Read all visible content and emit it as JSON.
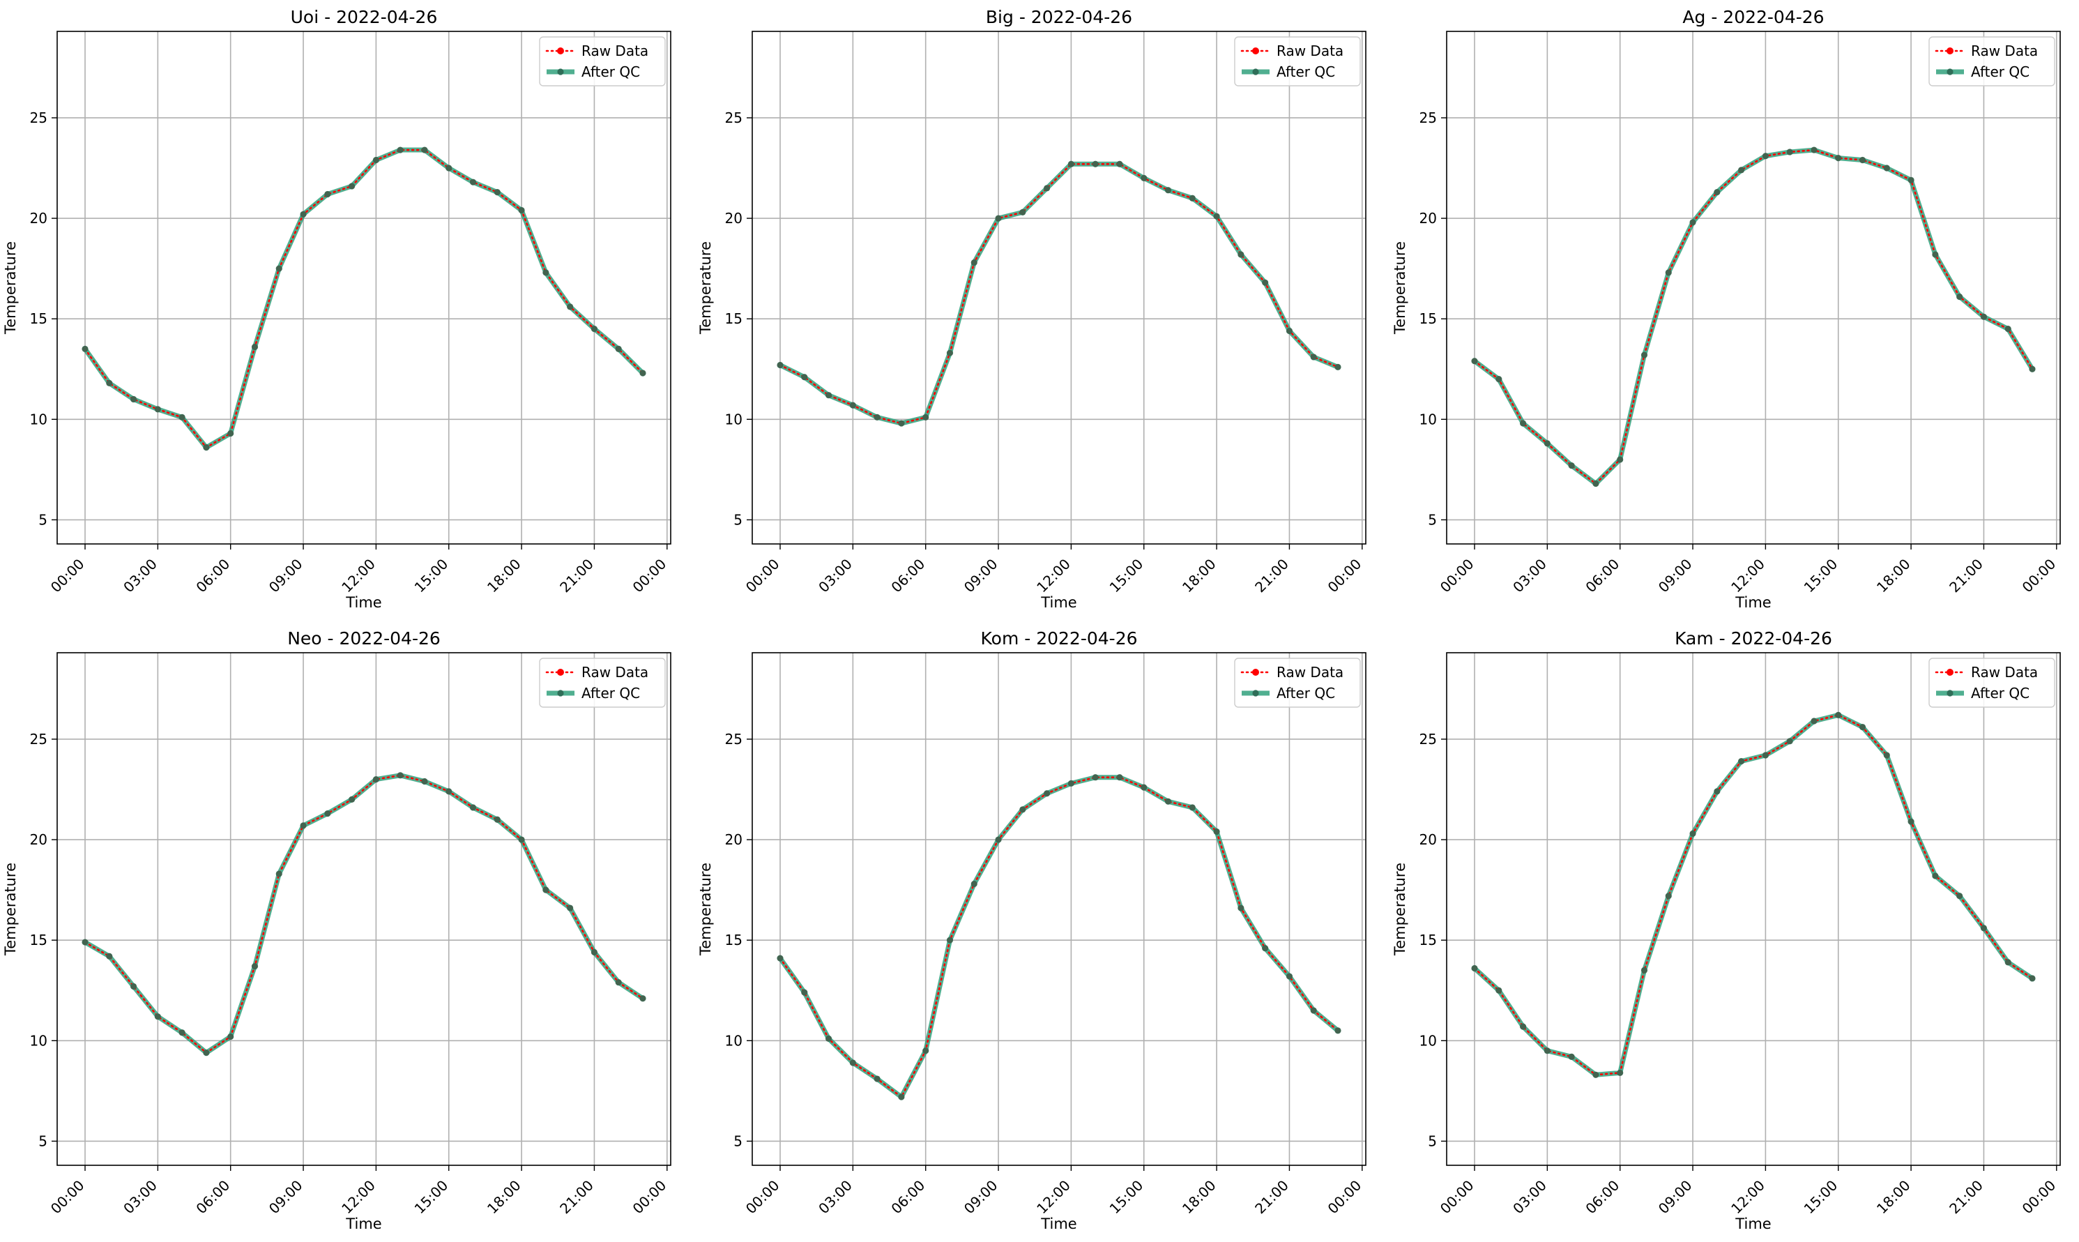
{
  "chart_data": [
    {
      "type": "line",
      "title": "Uoi - 2022-04-26",
      "xlabel": "Time",
      "ylabel": "Temperature",
      "x_ticks": [
        "00:00",
        "03:00",
        "06:00",
        "09:00",
        "12:00",
        "15:00",
        "18:00",
        "21:00",
        "00:00"
      ],
      "y_ticks": [
        5,
        10,
        15,
        20,
        25
      ],
      "ylim": [
        3.8,
        29.3
      ],
      "grid": true,
      "legend_position": "top-right",
      "x_hours": [
        0,
        1,
        2,
        3,
        4,
        5,
        6,
        7,
        8,
        9,
        10,
        11,
        12,
        13,
        14,
        15,
        16,
        17,
        18,
        19,
        20,
        21,
        22,
        23
      ],
      "series": [
        {
          "name": "Raw Data",
          "color": "#ff0000",
          "style": "dotted",
          "values": [
            13.5,
            11.8,
            11.0,
            10.5,
            10.1,
            8.6,
            9.3,
            13.6,
            17.5,
            20.2,
            21.2,
            21.6,
            22.9,
            23.4,
            23.4,
            22.5,
            21.8,
            21.3,
            20.4,
            17.3,
            15.6,
            14.5,
            13.5,
            12.3
          ]
        },
        {
          "name": "After QC",
          "color": "#2a9d78",
          "style": "solid",
          "values": [
            13.5,
            11.8,
            11.0,
            10.5,
            10.1,
            8.6,
            9.3,
            13.6,
            17.5,
            20.2,
            21.2,
            21.6,
            22.9,
            23.4,
            23.4,
            22.5,
            21.8,
            21.3,
            20.4,
            17.3,
            15.6,
            14.5,
            13.5,
            12.3
          ]
        }
      ]
    },
    {
      "type": "line",
      "title": "Big - 2022-04-26",
      "xlabel": "Time",
      "ylabel": "Temperature",
      "x_ticks": [
        "00:00",
        "03:00",
        "06:00",
        "09:00",
        "12:00",
        "15:00",
        "18:00",
        "21:00",
        "00:00"
      ],
      "y_ticks": [
        5,
        10,
        15,
        20,
        25
      ],
      "ylim": [
        3.8,
        29.3
      ],
      "grid": true,
      "legend_position": "top-right",
      "x_hours": [
        0,
        1,
        2,
        3,
        4,
        5,
        6,
        7,
        8,
        9,
        10,
        11,
        12,
        13,
        14,
        15,
        16,
        17,
        18,
        19,
        20,
        21,
        22,
        23
      ],
      "series": [
        {
          "name": "Raw Data",
          "color": "#ff0000",
          "style": "dotted",
          "values": [
            12.7,
            12.1,
            11.2,
            10.7,
            10.1,
            9.8,
            10.1,
            13.3,
            17.8,
            20.0,
            20.3,
            21.5,
            22.7,
            22.7,
            22.7,
            22.0,
            21.4,
            21.0,
            20.1,
            18.2,
            16.8,
            14.4,
            13.1,
            12.6
          ]
        },
        {
          "name": "After QC",
          "color": "#2a9d78",
          "style": "solid",
          "values": [
            12.7,
            12.1,
            11.2,
            10.7,
            10.1,
            9.8,
            10.1,
            13.3,
            17.8,
            20.0,
            20.3,
            21.5,
            22.7,
            22.7,
            22.7,
            22.0,
            21.4,
            21.0,
            20.1,
            18.2,
            16.8,
            14.4,
            13.1,
            12.6
          ]
        }
      ]
    },
    {
      "type": "line",
      "title": "Ag - 2022-04-26",
      "xlabel": "Time",
      "ylabel": "Temperature",
      "x_ticks": [
        "00:00",
        "03:00",
        "06:00",
        "09:00",
        "12:00",
        "15:00",
        "18:00",
        "21:00",
        "00:00"
      ],
      "y_ticks": [
        5,
        10,
        15,
        20,
        25
      ],
      "ylim": [
        3.8,
        29.3
      ],
      "grid": true,
      "legend_position": "top-right",
      "x_hours": [
        0,
        1,
        2,
        3,
        4,
        5,
        6,
        7,
        8,
        9,
        10,
        11,
        12,
        13,
        14,
        15,
        16,
        17,
        18,
        19,
        20,
        21,
        22,
        23
      ],
      "series": [
        {
          "name": "Raw Data",
          "color": "#ff0000",
          "style": "dotted",
          "values": [
            12.9,
            12.0,
            9.8,
            8.8,
            7.7,
            6.8,
            8.0,
            13.2,
            17.3,
            19.8,
            21.3,
            22.4,
            23.1,
            23.3,
            23.4,
            23.0,
            22.9,
            22.5,
            21.9,
            18.2,
            16.1,
            15.1,
            14.5,
            12.5
          ]
        },
        {
          "name": "After QC",
          "color": "#2a9d78",
          "style": "solid",
          "values": [
            12.9,
            12.0,
            9.8,
            8.8,
            7.7,
            6.8,
            8.0,
            13.2,
            17.3,
            19.8,
            21.3,
            22.4,
            23.1,
            23.3,
            23.4,
            23.0,
            22.9,
            22.5,
            21.9,
            18.2,
            16.1,
            15.1,
            14.5,
            12.5
          ]
        }
      ]
    },
    {
      "type": "line",
      "title": "Neo - 2022-04-26",
      "xlabel": "Time",
      "ylabel": "Temperature",
      "x_ticks": [
        "00:00",
        "03:00",
        "06:00",
        "09:00",
        "12:00",
        "15:00",
        "18:00",
        "21:00",
        "00:00"
      ],
      "y_ticks": [
        5,
        10,
        15,
        20,
        25
      ],
      "ylim": [
        3.8,
        29.3
      ],
      "grid": true,
      "legend_position": "top-right",
      "x_hours": [
        0,
        1,
        2,
        3,
        4,
        5,
        6,
        7,
        8,
        9,
        10,
        11,
        12,
        13,
        14,
        15,
        16,
        17,
        18,
        19,
        20,
        21,
        22,
        23
      ],
      "series": [
        {
          "name": "Raw Data",
          "color": "#ff0000",
          "style": "dotted",
          "values": [
            14.9,
            14.2,
            12.7,
            11.2,
            10.4,
            9.4,
            10.2,
            13.7,
            18.3,
            20.7,
            21.3,
            22.0,
            23.0,
            23.2,
            22.9,
            22.4,
            21.6,
            21.0,
            20.0,
            17.5,
            16.6,
            14.4,
            12.9,
            12.1
          ]
        },
        {
          "name": "After QC",
          "color": "#2a9d78",
          "style": "solid",
          "values": [
            14.9,
            14.2,
            12.7,
            11.2,
            10.4,
            9.4,
            10.2,
            13.7,
            18.3,
            20.7,
            21.3,
            22.0,
            23.0,
            23.2,
            22.9,
            22.4,
            21.6,
            21.0,
            20.0,
            17.5,
            16.6,
            14.4,
            12.9,
            12.1
          ]
        }
      ]
    },
    {
      "type": "line",
      "title": "Kom - 2022-04-26",
      "xlabel": "Time",
      "ylabel": "Temperature",
      "x_ticks": [
        "00:00",
        "03:00",
        "06:00",
        "09:00",
        "12:00",
        "15:00",
        "18:00",
        "21:00",
        "00:00"
      ],
      "y_ticks": [
        5,
        10,
        15,
        20,
        25
      ],
      "ylim": [
        3.8,
        29.3
      ],
      "grid": true,
      "legend_position": "top-right",
      "x_hours": [
        0,
        1,
        2,
        3,
        4,
        5,
        6,
        7,
        8,
        9,
        10,
        11,
        12,
        13,
        14,
        15,
        16,
        17,
        18,
        19,
        20,
        21,
        22,
        23
      ],
      "series": [
        {
          "name": "Raw Data",
          "color": "#ff0000",
          "style": "dotted",
          "values": [
            14.1,
            12.4,
            10.1,
            8.9,
            8.1,
            7.2,
            9.5,
            15.0,
            17.8,
            20.0,
            21.5,
            22.3,
            22.8,
            23.1,
            23.1,
            22.6,
            21.9,
            21.6,
            20.4,
            16.6,
            14.6,
            13.2,
            11.5,
            10.5
          ]
        },
        {
          "name": "After QC",
          "color": "#2a9d78",
          "style": "solid",
          "values": [
            14.1,
            12.4,
            10.1,
            8.9,
            8.1,
            7.2,
            9.5,
            15.0,
            17.8,
            20.0,
            21.5,
            22.3,
            22.8,
            23.1,
            23.1,
            22.6,
            21.9,
            21.6,
            20.4,
            16.6,
            14.6,
            13.2,
            11.5,
            10.5
          ]
        }
      ]
    },
    {
      "type": "line",
      "title": "Kam - 2022-04-26",
      "xlabel": "Time",
      "ylabel": "Temperature",
      "x_ticks": [
        "00:00",
        "03:00",
        "06:00",
        "09:00",
        "12:00",
        "15:00",
        "18:00",
        "21:00",
        "00:00"
      ],
      "y_ticks": [
        5,
        10,
        15,
        20,
        25
      ],
      "ylim": [
        3.8,
        29.3
      ],
      "grid": true,
      "legend_position": "top-right",
      "x_hours": [
        0,
        1,
        2,
        3,
        4,
        5,
        6,
        7,
        8,
        9,
        10,
        11,
        12,
        13,
        14,
        15,
        16,
        17,
        18,
        19,
        20,
        21,
        22,
        23
      ],
      "series": [
        {
          "name": "Raw Data",
          "color": "#ff0000",
          "style": "dotted",
          "values": [
            13.6,
            12.5,
            10.7,
            9.5,
            9.2,
            8.3,
            8.4,
            13.5,
            17.2,
            20.3,
            22.4,
            23.9,
            24.2,
            24.9,
            25.9,
            26.2,
            25.6,
            24.2,
            20.9,
            18.2,
            17.2,
            15.6,
            13.9,
            13.1
          ]
        },
        {
          "name": "After QC",
          "color": "#2a9d78",
          "style": "solid",
          "values": [
            13.6,
            12.5,
            10.7,
            9.5,
            9.2,
            8.3,
            8.4,
            13.5,
            17.2,
            20.3,
            22.4,
            23.9,
            24.2,
            24.9,
            25.9,
            26.2,
            25.6,
            24.2,
            20.9,
            18.2,
            17.2,
            15.6,
            13.9,
            13.1
          ]
        }
      ]
    }
  ]
}
